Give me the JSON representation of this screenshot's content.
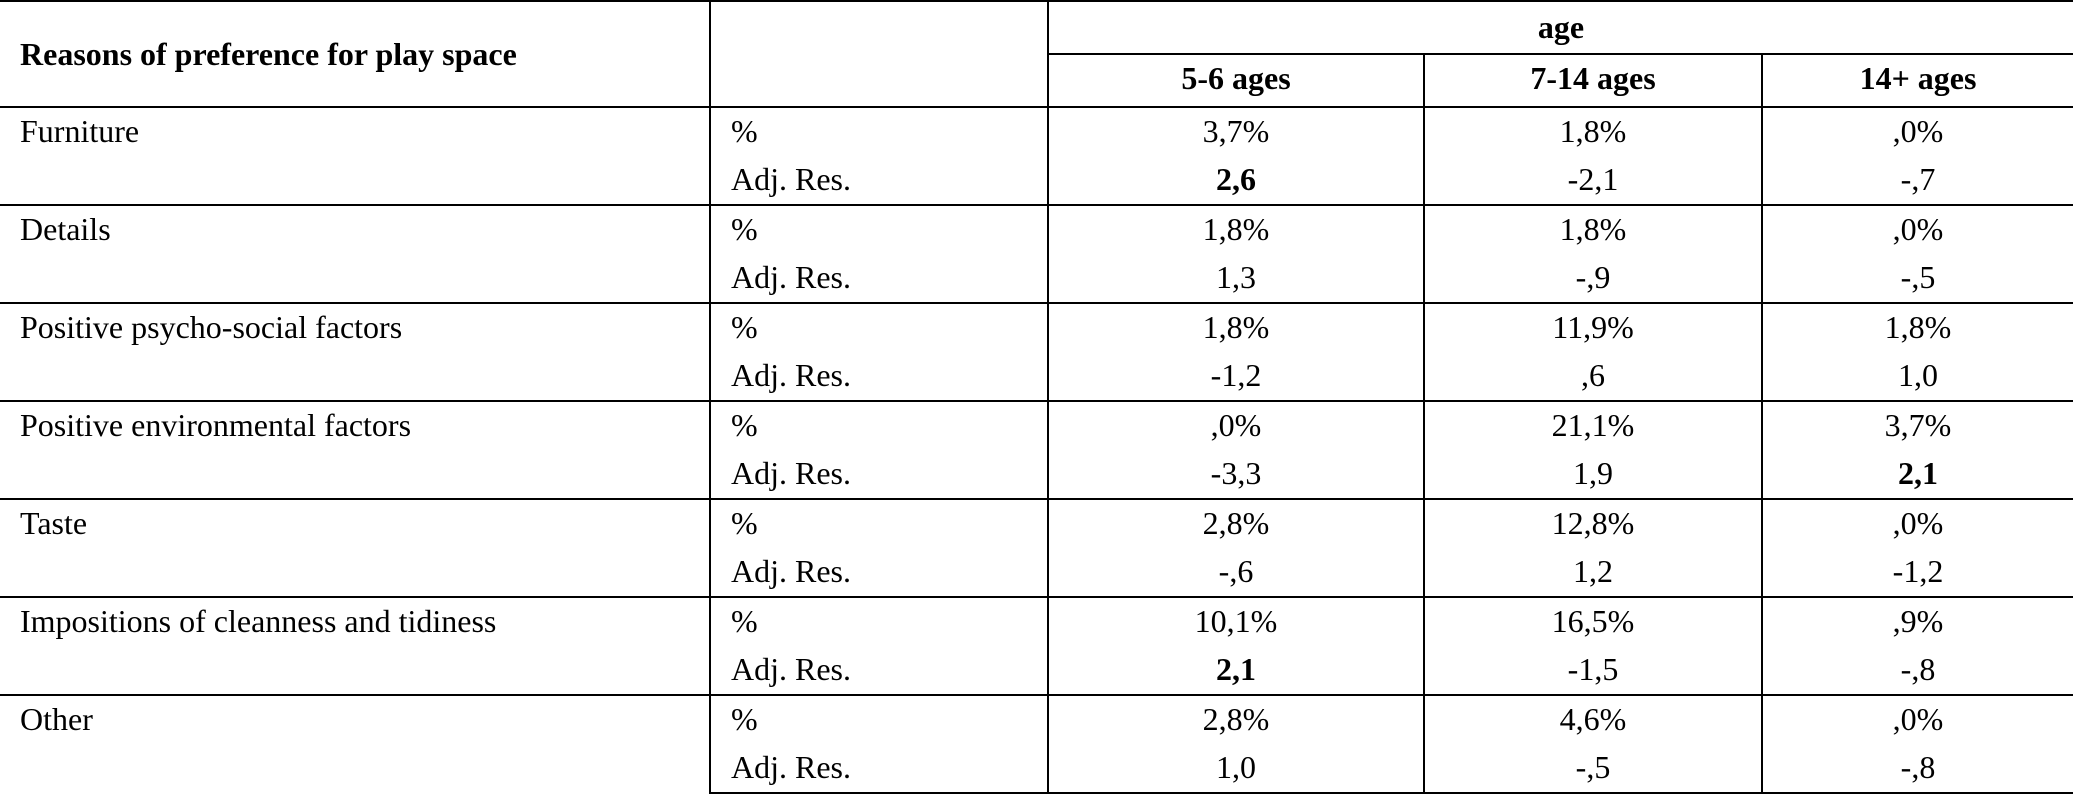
{
  "table": {
    "header": {
      "title": "Reasons of preference for play space",
      "group": "age",
      "columns": [
        "5-6 ages",
        "7-14 ages",
        "14+ ages"
      ]
    },
    "rows": [
      {
        "label": "Furniture",
        "stats": [
          {
            "stat": "%",
            "values": [
              "3,7%",
              "1,8%",
              ",0%"
            ]
          },
          {
            "stat": "Adj. Res.",
            "values": [
              {
                "text": "2,6",
                "bold": true
              },
              "-2,1",
              "-,7"
            ]
          }
        ]
      },
      {
        "label": "Details",
        "stats": [
          {
            "stat": "%",
            "values": [
              "1,8%",
              "1,8%",
              ",0%"
            ]
          },
          {
            "stat": "Adj. Res.",
            "values": [
              "1,3",
              "-,9",
              "-,5"
            ]
          }
        ]
      },
      {
        "label": "Positive psycho-social factors",
        "stats": [
          {
            "stat": "%",
            "values": [
              "1,8%",
              "11,9%",
              "1,8%"
            ]
          },
          {
            "stat": "Adj. Res.",
            "values": [
              "-1,2",
              ",6",
              "1,0"
            ]
          }
        ]
      },
      {
        "label": "Positive environmental factors",
        "stats": [
          {
            "stat": "%",
            "values": [
              ",0%",
              "21,1%",
              "3,7%"
            ]
          },
          {
            "stat": "Adj. Res.",
            "values": [
              "-3,3",
              "1,9",
              {
                "text": "2,1",
                "bold": true
              }
            ]
          }
        ]
      },
      {
        "label": "Taste",
        "stats": [
          {
            "stat": "%",
            "values": [
              "2,8%",
              "12,8%",
              ",0%"
            ]
          },
          {
            "stat": "Adj. Res.",
            "values": [
              "-,6",
              "1,2",
              "-1,2"
            ]
          }
        ]
      },
      {
        "label": "Impositions of cleanness and tidiness",
        "stats": [
          {
            "stat": "%",
            "values": [
              "10,1%",
              "16,5%",
              ",9%"
            ]
          },
          {
            "stat": "Adj. Res.",
            "values": [
              {
                "text": "2,1",
                "bold": true
              },
              "-1,5",
              "-,8"
            ]
          }
        ]
      },
      {
        "label": "Other",
        "stats": [
          {
            "stat": "%",
            "values": [
              "2,8%",
              "4,6%",
              ",0%"
            ]
          },
          {
            "stat": "Adj. Res.",
            "values": [
              "1,0",
              "-,5",
              "-,8"
            ]
          }
        ]
      }
    ]
  }
}
